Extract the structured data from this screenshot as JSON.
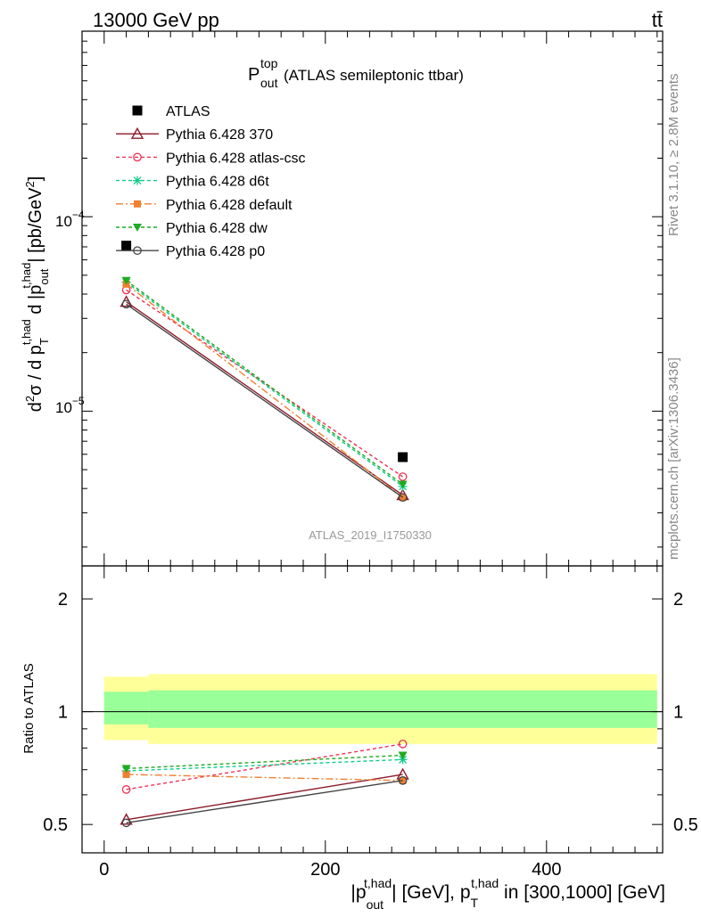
{
  "header": {
    "energy": "13000 GeV pp",
    "process": "tt̄",
    "title_main": "P",
    "title_sup": "top",
    "title_sub": "out",
    "title_rest": " (ATLAS semileptonic ttbar)",
    "analysis": "ATLAS_2019_I1750330"
  },
  "side_text": {
    "rivet": "Rivet 3.1.10, ≥ 2.8M events",
    "mcplots": "mcplots.cern.ch [arXiv:1306.3436]"
  },
  "axes": {
    "ylabel_main": "d²σ / d p_T^{t,had} d |p_out^{t,had}| [pb/GeV²]",
    "ylabel_ratio": "Ratio to ATLAS",
    "xlabel": "|p_out^{t,had}| [GeV], p_T^{t,had} in [300,1000] [GeV]",
    "main_y_ticks": [
      "10",
      "10"
    ],
    "ratio_y_ticks": [
      "2",
      "1",
      "0.5"
    ],
    "x_ticks": [
      "0",
      "200",
      "400"
    ]
  },
  "colors": {
    "atlas": "#000000",
    "p370": "#8b1a2a",
    "atlascsc": "#ee3355",
    "d6t": "#11cc88",
    "default": "#f08030",
    "dw": "#22aa22",
    "p0": "#444444",
    "band_outer": "#ffff99",
    "band_inner": "#99ff99"
  },
  "chart_data": {
    "type": "scatter",
    "x_range": [
      -20,
      505
    ],
    "main": {
      "scale": "log",
      "y_range": [
        1.6e-06,
        0.0009
      ],
      "x": [
        20,
        270
      ],
      "data": {
        "name": "ATLAS",
        "values": [
          7.1e-05,
          5.8e-06
        ]
      },
      "series": [
        {
          "name": "Pythia 6.428 370",
          "values": [
            3.65e-05,
            3.7e-06
          ]
        },
        {
          "name": "Pythia 6.428 atlas-csc",
          "values": [
            4.2e-05,
            4.6e-06
          ]
        },
        {
          "name": "Pythia 6.428 d6t",
          "values": [
            4.6e-05,
            4.1e-06
          ]
        },
        {
          "name": "Pythia 6.428 default",
          "values": [
            4.5e-05,
            3.6e-06
          ]
        },
        {
          "name": "Pythia 6.428 dw",
          "values": [
            4.7e-05,
            4.2e-06
          ]
        },
        {
          "name": "Pythia 6.428 p0",
          "values": [
            3.55e-05,
            3.6e-06
          ]
        }
      ]
    },
    "ratio": {
      "scale": "log",
      "y_range": [
        0.42,
        2.45
      ],
      "x": [
        20,
        270
      ],
      "series": [
        {
          "name": "Pythia 6.428 370",
          "values": [
            0.515,
            0.68
          ]
        },
        {
          "name": "Pythia 6.428 atlas-csc",
          "values": [
            0.62,
            0.82
          ]
        },
        {
          "name": "Pythia 6.428 d6t",
          "values": [
            0.695,
            0.745
          ]
        },
        {
          "name": "Pythia 6.428 default",
          "values": [
            0.68,
            0.655
          ]
        },
        {
          "name": "Pythia 6.428 dw",
          "values": [
            0.705,
            0.765
          ]
        },
        {
          "name": "Pythia 6.428 p0",
          "values": [
            0.505,
            0.655
          ]
        }
      ],
      "bands": [
        {
          "x": [
            0,
            40
          ],
          "outer": [
            0.84,
            1.24
          ],
          "inner": [
            0.925,
            1.13
          ]
        },
        {
          "x": [
            40,
            500
          ],
          "outer": [
            0.82,
            1.26
          ],
          "inner": [
            0.905,
            1.14
          ]
        }
      ]
    },
    "legend": [
      "ATLAS",
      "Pythia 6.428 370",
      "Pythia 6.428 atlas-csc",
      "Pythia 6.428 d6t",
      "Pythia 6.428 default",
      "Pythia 6.428 dw",
      "Pythia 6.428 p0"
    ],
    "legend_position": "top-left"
  }
}
